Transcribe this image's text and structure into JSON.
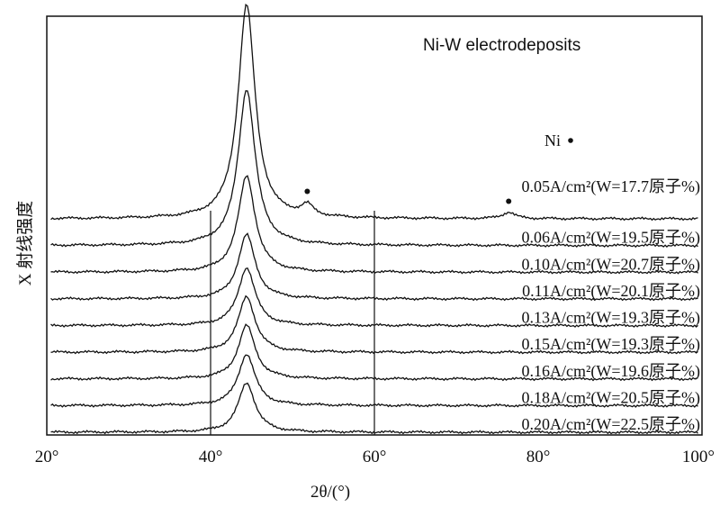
{
  "chart_data": {
    "type": "line",
    "title": "Ni-W electrodeposits",
    "xlabel": "2θ/(°)",
    "ylabel": "X 射线强度",
    "xlim": [
      20,
      100
    ],
    "x_ticks": [
      "20°",
      "40°",
      "60°",
      "80°",
      "100°"
    ],
    "reference_lines_x": [
      40,
      60
    ],
    "grid": false,
    "legend": {
      "symbol": "•",
      "label": "Ni",
      "position": "top-right"
    },
    "peak_markers": [
      {
        "x": 44.5,
        "series": "0.05A/cm²(W=17.7原子%)"
      },
      {
        "x": 51.8,
        "series": "0.05A/cm²(W=17.7原子%)"
      },
      {
        "x": 76.4,
        "series": "0.05A/cm²(W=17.7原子%)"
      }
    ],
    "series": [
      {
        "label": "0.05A/cm²(W=17.7原子%)",
        "peak_x": 44.4,
        "peak_rel": 1.0,
        "shoulders": [
          {
            "x": 51.8,
            "rel": 0.05
          },
          {
            "x": 76.4,
            "rel": 0.03
          }
        ]
      },
      {
        "label": "0.06A/cm²(W=19.5原子%)",
        "peak_x": 44.4,
        "peak_rel": 0.73,
        "shoulders": []
      },
      {
        "label": "0.10A/cm²(W=20.7原子%)",
        "peak_x": 44.4,
        "peak_rel": 0.45,
        "shoulders": []
      },
      {
        "label": "0.11A/cm²(W=20.1原子%)",
        "peak_x": 44.4,
        "peak_rel": 0.3,
        "shoulders": []
      },
      {
        "label": "0.13A/cm²(W=19.3原子%)",
        "peak_x": 44.4,
        "peak_rel": 0.27,
        "shoulders": []
      },
      {
        "label": "0.15A/cm²(W=19.3原子%)",
        "peak_x": 44.4,
        "peak_rel": 0.26,
        "shoulders": []
      },
      {
        "label": "0.16A/cm²(W=19.6原子%)",
        "peak_x": 44.4,
        "peak_rel": 0.25,
        "shoulders": []
      },
      {
        "label": "0.18A/cm²(W=20.5原子%)",
        "peak_x": 44.4,
        "peak_rel": 0.24,
        "shoulders": []
      },
      {
        "label": "0.20A/cm²(W=22.5原子%)",
        "peak_x": 44.4,
        "peak_rel": 0.23,
        "shoulders": []
      }
    ]
  }
}
